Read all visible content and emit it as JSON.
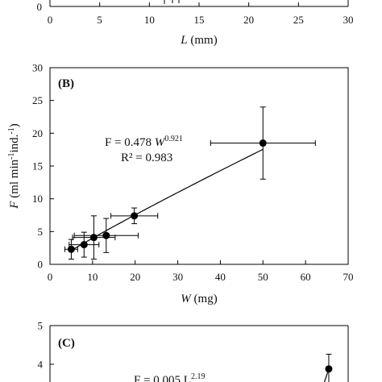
{
  "chart_data": [
    {
      "panel": "A",
      "type": "scatter",
      "xlabel_var": "L",
      "xlabel_unit": "(mm)",
      "xlim": [
        0,
        30
      ],
      "xticks": [
        0,
        5,
        10,
        15,
        20,
        25,
        30
      ],
      "yticks_visible": [
        0
      ]
    },
    {
      "panel": "B",
      "panel_label": "(B)",
      "type": "scatter",
      "xlabel_var": "W",
      "xlabel_unit": "(mg)",
      "ylabel_var": "F",
      "ylabel_unit": "(ml min",
      "ylabel_unit2": "ind.",
      "ylabel_close": ")",
      "xlim": [
        0,
        70
      ],
      "ylim": [
        0,
        30
      ],
      "xticks": [
        0,
        10,
        20,
        30,
        40,
        50,
        60,
        70
      ],
      "yticks": [
        0,
        5,
        10,
        15,
        20,
        25,
        30
      ],
      "points": [
        {
          "x": 5.0,
          "y": 2.3,
          "xerr": 1.5,
          "yerr": 1.5
        },
        {
          "x": 8.0,
          "y": 3.0,
          "xerr": 3.5,
          "yerr": 1.9
        },
        {
          "x": 10.3,
          "y": 4.1,
          "xerr": 5.0,
          "yerr": 3.3
        },
        {
          "x": 13.2,
          "y": 4.4,
          "xerr": 7.5,
          "yerr": 2.6
        },
        {
          "x": 19.8,
          "y": 7.4,
          "xerr": 5.5,
          "yerr": 1.2
        },
        {
          "x": 50.0,
          "y": 18.5,
          "xerr": 12.3,
          "yerr": 5.5
        }
      ],
      "fit": {
        "a": 0.478,
        "b": 0.921,
        "x_from": 5.0,
        "x_to": 50.0
      },
      "equation_lhs": "F = 0.478 ",
      "equation_var": "W",
      "equation_exp": "0.921",
      "r2_label": "R² = 0.983"
    },
    {
      "panel": "C",
      "panel_label": "(C)",
      "type": "scatter",
      "ylim_visible": [
        3,
        5
      ],
      "yticks_visible": [
        4,
        5
      ],
      "equation_partial": "F = 0.005 L",
      "equation_exp_partial": "2.19",
      "points_visible": [
        {
          "x": 0.935,
          "y": 3.88,
          "yerr": 0.38
        }
      ]
    }
  ]
}
